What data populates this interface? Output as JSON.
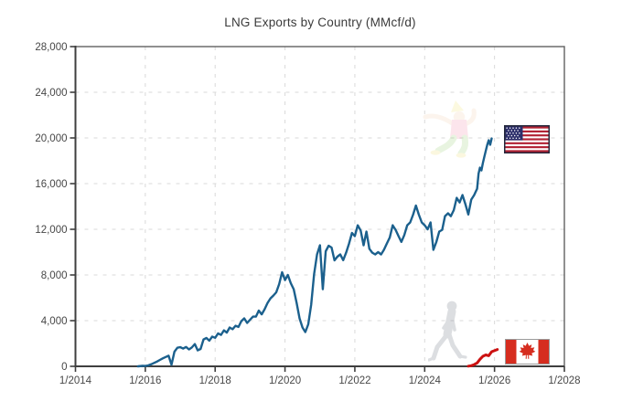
{
  "chart_data": {
    "type": "line",
    "title": "LNG Exports by Country (MMcf/d)",
    "grid": true,
    "legend_position": "none",
    "x_axis": {
      "range": [
        2014,
        2028
      ],
      "ticks": [
        2014,
        2016,
        2018,
        2020,
        2022,
        2024,
        2026,
        2028
      ],
      "tick_labels": [
        "1/2014",
        "1/2016",
        "1/2018",
        "1/2020",
        "1/2022",
        "1/2024",
        "1/2026",
        "1/2028"
      ]
    },
    "y_axis": {
      "range": [
        0,
        28000
      ],
      "ticks": [
        0,
        4000,
        8000,
        12000,
        16000,
        20000,
        24000,
        28000
      ],
      "tick_labels": [
        "0",
        "4,000",
        "8,000",
        "12,000",
        "16,000",
        "20,000",
        "24,000",
        "28,000"
      ]
    },
    "series": [
      {
        "name": "United States",
        "color": "#1B608D",
        "width": 2.4,
        "points": [
          [
            2015.79,
            0
          ],
          [
            2015.92,
            40
          ],
          [
            2016.0,
            30
          ],
          [
            2016.083,
            80
          ],
          [
            2016.167,
            180
          ],
          [
            2016.25,
            300
          ],
          [
            2016.333,
            420
          ],
          [
            2016.417,
            560
          ],
          [
            2016.5,
            700
          ],
          [
            2016.583,
            820
          ],
          [
            2016.667,
            930
          ],
          [
            2016.75,
            140
          ],
          [
            2016.833,
            1280
          ],
          [
            2016.917,
            1625
          ],
          [
            2017.0,
            1680
          ],
          [
            2017.083,
            1550
          ],
          [
            2017.167,
            1700
          ],
          [
            2017.25,
            1480
          ],
          [
            2017.333,
            1650
          ],
          [
            2017.417,
            1950
          ],
          [
            2017.5,
            1400
          ],
          [
            2017.583,
            1520
          ],
          [
            2017.667,
            2350
          ],
          [
            2017.75,
            2480
          ],
          [
            2017.833,
            2250
          ],
          [
            2017.917,
            2600
          ],
          [
            2018.0,
            2500
          ],
          [
            2018.083,
            2880
          ],
          [
            2018.167,
            2750
          ],
          [
            2018.25,
            3150
          ],
          [
            2018.333,
            2950
          ],
          [
            2018.417,
            3400
          ],
          [
            2018.5,
            3250
          ],
          [
            2018.583,
            3550
          ],
          [
            2018.667,
            3450
          ],
          [
            2018.75,
            3950
          ],
          [
            2018.833,
            4200
          ],
          [
            2018.917,
            3800
          ],
          [
            2019.0,
            4080
          ],
          [
            2019.083,
            4350
          ],
          [
            2019.167,
            4350
          ],
          [
            2019.25,
            4880
          ],
          [
            2019.333,
            4550
          ],
          [
            2019.417,
            5000
          ],
          [
            2019.5,
            5550
          ],
          [
            2019.583,
            5950
          ],
          [
            2019.667,
            6200
          ],
          [
            2019.75,
            6480
          ],
          [
            2019.833,
            7200
          ],
          [
            2019.917,
            8240
          ],
          [
            2020.0,
            7550
          ],
          [
            2020.083,
            8000
          ],
          [
            2020.167,
            7280
          ],
          [
            2020.25,
            6750
          ],
          [
            2020.333,
            5550
          ],
          [
            2020.417,
            4200
          ],
          [
            2020.5,
            3400
          ],
          [
            2020.583,
            3000
          ],
          [
            2020.667,
            3680
          ],
          [
            2020.75,
            5400
          ],
          [
            2020.833,
            8080
          ],
          [
            2020.917,
            9800
          ],
          [
            2021.0,
            10600
          ],
          [
            2021.083,
            6750
          ],
          [
            2021.167,
            10080
          ],
          [
            2021.25,
            10560
          ],
          [
            2021.333,
            10400
          ],
          [
            2021.417,
            9280
          ],
          [
            2021.5,
            9600
          ],
          [
            2021.583,
            9800
          ],
          [
            2021.667,
            9300
          ],
          [
            2021.75,
            9950
          ],
          [
            2021.833,
            10750
          ],
          [
            2021.917,
            11680
          ],
          [
            2022.0,
            11400
          ],
          [
            2022.083,
            12350
          ],
          [
            2022.167,
            11900
          ],
          [
            2022.25,
            10600
          ],
          [
            2022.333,
            11800
          ],
          [
            2022.417,
            10300
          ],
          [
            2022.5,
            9950
          ],
          [
            2022.583,
            9800
          ],
          [
            2022.667,
            10000
          ],
          [
            2022.75,
            9800
          ],
          [
            2022.833,
            10200
          ],
          [
            2022.917,
            10750
          ],
          [
            2023.0,
            11280
          ],
          [
            2023.083,
            12350
          ],
          [
            2023.167,
            11950
          ],
          [
            2023.25,
            11400
          ],
          [
            2023.333,
            10900
          ],
          [
            2023.417,
            11500
          ],
          [
            2023.5,
            12350
          ],
          [
            2023.583,
            12600
          ],
          [
            2023.667,
            13280
          ],
          [
            2023.75,
            14080
          ],
          [
            2023.833,
            13280
          ],
          [
            2023.917,
            12600
          ],
          [
            2024.0,
            12350
          ],
          [
            2024.083,
            12000
          ],
          [
            2024.167,
            12600
          ],
          [
            2024.25,
            10200
          ],
          [
            2024.333,
            10880
          ],
          [
            2024.417,
            11800
          ],
          [
            2024.5,
            11950
          ],
          [
            2024.583,
            13150
          ],
          [
            2024.667,
            13400
          ],
          [
            2024.75,
            13150
          ],
          [
            2024.833,
            13680
          ],
          [
            2024.917,
            14750
          ],
          [
            2025.0,
            14350
          ],
          [
            2025.083,
            15000
          ],
          [
            2025.167,
            14200
          ],
          [
            2025.25,
            13300
          ],
          [
            2025.333,
            14600
          ],
          [
            2025.417,
            15000
          ],
          [
            2025.458,
            15280
          ],
          [
            2025.5,
            15550
          ],
          [
            2025.542,
            16880
          ],
          [
            2025.583,
            17400
          ],
          [
            2025.625,
            17150
          ],
          [
            2025.667,
            17800
          ],
          [
            2025.708,
            18350
          ],
          [
            2025.75,
            18880
          ],
          [
            2025.792,
            19400
          ],
          [
            2025.833,
            19800
          ],
          [
            2025.875,
            19400
          ],
          [
            2025.917,
            19950
          ]
        ]
      },
      {
        "name": "Canada",
        "color": "#CC1111",
        "width": 3,
        "points": [
          [
            2025.25,
            20
          ],
          [
            2025.333,
            60
          ],
          [
            2025.417,
            150
          ],
          [
            2025.5,
            300
          ],
          [
            2025.583,
            620
          ],
          [
            2025.667,
            880
          ],
          [
            2025.75,
            1000
          ],
          [
            2025.833,
            930
          ],
          [
            2025.917,
            1280
          ],
          [
            2026.08,
            1470
          ]
        ]
      }
    ],
    "annotations": [
      {
        "icon": "us-flag-icon",
        "meaning": "United States series marker",
        "x": 2026.9,
        "y": 19900
      },
      {
        "icon": "canada-flag-icon",
        "meaning": "Canada series marker",
        "x": 2026.9,
        "y": 1280
      },
      {
        "icon": "dancing-person-icon",
        "meaning": "faint celebratory watermark near US line",
        "x": 2024.7,
        "y": 20700
      },
      {
        "icon": "walking-person-icon",
        "meaning": "faint walking watermark near Canada line",
        "x": 2024.7,
        "y": 2900
      }
    ],
    "colors": {
      "us_line": "#1B608D",
      "canada_line": "#CC1111",
      "grid": "#D9D9D9",
      "axis": "#3F3F3F",
      "border": "#606060",
      "text": "#3A3A3A",
      "flag_red": "#B22234",
      "flag_navy": "#2D2F6B",
      "canada_red": "#D62D1F"
    }
  }
}
